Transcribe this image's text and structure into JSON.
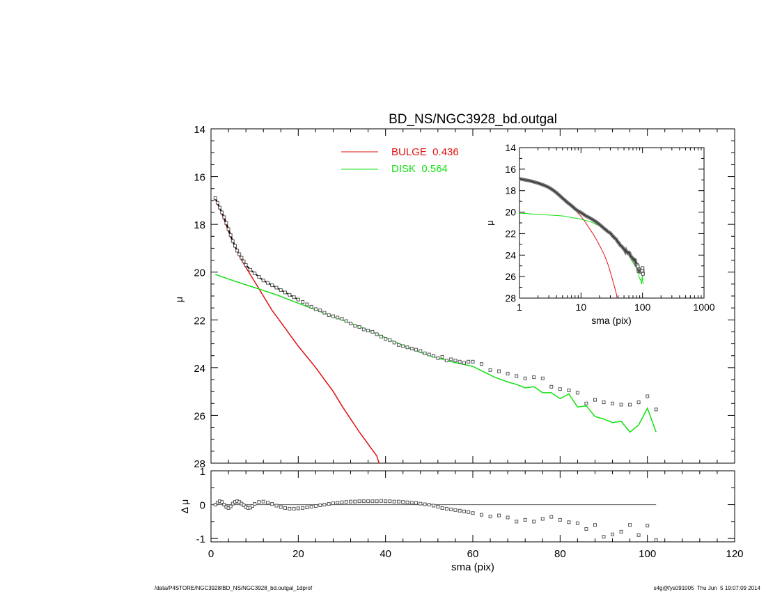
{
  "footer": {
    "path": "/data/P4STORE/NGC3928/BD_NS/NGC3928_bd.outgal_1dprof",
    "stamp": "s4g@fys091005  Thu Jun  5 19:07:09 2014"
  },
  "colors": {
    "bulge": "#e01010",
    "disk": "#10e010",
    "model": "#000000",
    "data": "#555555"
  },
  "chart_data": [
    {
      "id": "main",
      "type": "line",
      "title": "BD_NS/NGC3928_bd.outgal",
      "ylabel": "μ",
      "xlim": [
        0,
        120
      ],
      "ylim": [
        28,
        14
      ],
      "yticks": [
        14,
        16,
        18,
        20,
        22,
        24,
        26,
        28
      ],
      "legend": {
        "placement": "top-center",
        "entries": [
          {
            "name": "BULGE  0.436",
            "color": "#e01010"
          },
          {
            "name": "DISK  0.564",
            "color": "#10e010"
          }
        ]
      },
      "bulge": {
        "x": [
          1,
          2,
          3,
          4,
          5,
          6,
          7,
          8,
          10,
          12,
          14,
          16,
          18,
          20,
          22,
          24,
          26,
          28,
          30,
          32,
          34,
          36,
          38,
          38.5
        ],
        "y": [
          16.95,
          17.35,
          17.8,
          18.3,
          18.75,
          19.15,
          19.5,
          19.8,
          20.4,
          21.0,
          21.6,
          22.1,
          22.6,
          23.1,
          23.55,
          24.0,
          24.5,
          25.0,
          25.6,
          26.15,
          26.7,
          27.2,
          27.7,
          28.0
        ]
      },
      "disk": {
        "x": [
          1,
          5,
          10,
          15,
          20,
          25,
          30,
          35,
          40,
          45,
          50,
          55,
          60,
          65,
          68,
          70,
          72,
          74,
          76,
          78,
          80,
          82,
          84,
          86,
          88,
          90,
          92,
          94,
          96,
          98,
          100,
          102
        ],
        "y": [
          20.1,
          20.35,
          20.65,
          20.95,
          21.3,
          21.65,
          22.0,
          22.35,
          22.75,
          23.15,
          23.5,
          23.75,
          23.95,
          24.4,
          24.6,
          24.7,
          24.85,
          24.8,
          25.05,
          25.05,
          25.3,
          25.1,
          25.65,
          25.6,
          26.05,
          26.15,
          26.3,
          26.25,
          26.7,
          26.4,
          25.7,
          26.7
        ]
      },
      "data_points": {
        "x": [
          1,
          1.5,
          2,
          2.5,
          3,
          3.5,
          4,
          4.5,
          5,
          5.5,
          6,
          6.5,
          7,
          7.5,
          8,
          9,
          10,
          11,
          12,
          13,
          14,
          15,
          16,
          17,
          18,
          19,
          20,
          21,
          22,
          23,
          24,
          25,
          26,
          27,
          28,
          29,
          30,
          31,
          32,
          33,
          34,
          35,
          36,
          37,
          38,
          39,
          40,
          41,
          42,
          43,
          44,
          45,
          46,
          47,
          48,
          49,
          50,
          51,
          52,
          53,
          54,
          55,
          56,
          57,
          58,
          59,
          60,
          62,
          64,
          66,
          68,
          70,
          72,
          74,
          76,
          78,
          80,
          82,
          84,
          86,
          88,
          90,
          92,
          94,
          96,
          98,
          100,
          102
        ],
        "y": [
          16.9,
          17.1,
          17.3,
          17.5,
          17.7,
          17.95,
          18.2,
          18.45,
          18.7,
          18.9,
          19.1,
          19.25,
          19.4,
          19.55,
          19.7,
          19.9,
          20.05,
          20.2,
          20.35,
          20.45,
          20.55,
          20.65,
          20.75,
          20.85,
          20.95,
          21.05,
          21.15,
          21.25,
          21.35,
          21.45,
          21.55,
          21.6,
          21.7,
          21.8,
          21.85,
          21.9,
          21.95,
          22.05,
          22.15,
          22.25,
          22.3,
          22.4,
          22.45,
          22.5,
          22.6,
          22.7,
          22.8,
          22.85,
          22.95,
          23.05,
          23.1,
          23.15,
          23.2,
          23.25,
          23.3,
          23.4,
          23.45,
          23.5,
          23.6,
          23.55,
          23.7,
          23.65,
          23.7,
          23.75,
          23.8,
          23.75,
          23.75,
          23.85,
          24.1,
          24.15,
          24.25,
          24.35,
          24.45,
          24.4,
          24.45,
          24.8,
          24.9,
          24.95,
          25.05,
          25.5,
          25.35,
          25.45,
          25.5,
          25.55,
          25.55,
          25.45,
          25.2,
          25.75
        ]
      }
    },
    {
      "id": "residual",
      "type": "scatter",
      "xlabel": "sma (pix)",
      "ylabel": "Δ μ",
      "xlim": [
        0,
        120
      ],
      "ylim": [
        -1.1,
        1.0
      ],
      "xticks": [
        0,
        20,
        40,
        60,
        80,
        100,
        120
      ],
      "yticks": [
        -1,
        0,
        1
      ],
      "zero_line": {
        "x": [
          0,
          102
        ],
        "y": 0
      },
      "x": [
        1,
        1.5,
        2,
        2.5,
        3,
        3.5,
        4,
        4.5,
        5,
        5.5,
        6,
        6.5,
        7,
        7.5,
        8,
        8.5,
        9,
        9.5,
        10,
        11,
        12,
        13,
        14,
        15,
        16,
        17,
        18,
        19,
        20,
        21,
        22,
        23,
        24,
        25,
        26,
        27,
        28,
        29,
        30,
        31,
        32,
        33,
        34,
        35,
        36,
        37,
        38,
        39,
        40,
        41,
        42,
        43,
        44,
        45,
        46,
        47,
        48,
        49,
        50,
        51,
        52,
        53,
        54,
        55,
        56,
        57,
        58,
        59,
        60,
        62,
        64,
        66,
        68,
        70,
        72,
        74,
        76,
        78,
        80,
        82,
        84,
        86,
        88,
        90,
        92,
        94,
        96,
        98,
        100,
        102
      ],
      "y": [
        0.0,
        0.06,
        0.1,
        0.08,
        0.0,
        -0.07,
        -0.1,
        -0.05,
        0.03,
        0.08,
        0.1,
        0.08,
        0.03,
        -0.02,
        -0.07,
        -0.1,
        -0.09,
        -0.04,
        0.02,
        0.08,
        0.09,
        0.06,
        0.02,
        -0.03,
        -0.07,
        -0.1,
        -0.12,
        -0.12,
        -0.11,
        -0.1,
        -0.08,
        -0.06,
        -0.04,
        -0.02,
        0.0,
        0.02,
        0.04,
        0.06,
        0.07,
        0.08,
        0.09,
        0.09,
        0.1,
        0.1,
        0.1,
        0.1,
        0.1,
        0.11,
        0.1,
        0.1,
        0.09,
        0.09,
        0.08,
        0.07,
        0.06,
        0.05,
        0.03,
        0.01,
        0.0,
        -0.03,
        -0.06,
        -0.1,
        -0.12,
        -0.14,
        -0.16,
        -0.18,
        -0.2,
        -0.22,
        -0.25,
        -0.3,
        -0.35,
        -0.32,
        -0.38,
        -0.5,
        -0.45,
        -0.5,
        -0.42,
        -0.36,
        -0.45,
        -0.52,
        -0.55,
        -0.72,
        -0.6,
        -0.95,
        -0.88,
        -0.8,
        -0.6,
        -0.9,
        -0.62,
        -1.05
      ]
    },
    {
      "id": "inset",
      "type": "line",
      "xlabel": "sma (pix)",
      "ylabel": "μ",
      "xscale": "log",
      "xlim": [
        1,
        1000
      ],
      "ylim": [
        28,
        14
      ],
      "xticks": [
        1,
        10,
        100,
        1000
      ],
      "yticks": [
        14,
        16,
        18,
        20,
        22,
        24,
        26,
        28
      ]
    }
  ]
}
